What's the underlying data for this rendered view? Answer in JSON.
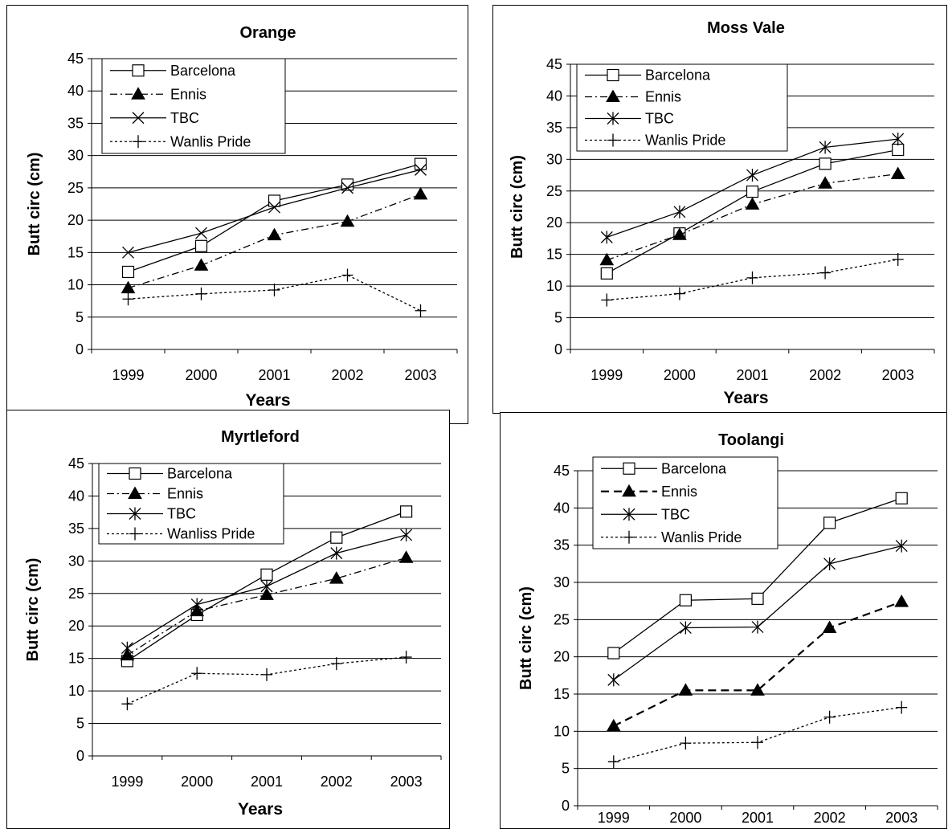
{
  "chart_data": [
    {
      "type": "line",
      "title": "Orange",
      "xlabel": "Years",
      "ylabel": "Butt circ (cm)",
      "categories": [
        "1999",
        "2000",
        "2001",
        "2002",
        "2003"
      ],
      "ylim": [
        0,
        45
      ],
      "yticks": [
        "0",
        "5",
        "10",
        "15",
        "20",
        "25",
        "30",
        "35",
        "40",
        "45"
      ],
      "grid": true,
      "legend": "top-left",
      "series": [
        {
          "name": "Barcelona",
          "marker": "open-square",
          "line": "solid",
          "values": [
            12,
            16,
            23,
            25.5,
            28.7
          ]
        },
        {
          "name": "Ennis",
          "marker": "filled-triangle",
          "line": "dash-dot",
          "values": [
            9.5,
            13,
            17.7,
            19.8,
            24
          ]
        },
        {
          "name": "TBC",
          "marker": "x",
          "line": "solid",
          "values": [
            15,
            18,
            22,
            25,
            27.8
          ]
        },
        {
          "name": "Wanlis Pride",
          "marker": "plus",
          "line": "dotted",
          "values": [
            7.8,
            8.6,
            9.2,
            11.5,
            6
          ]
        }
      ]
    },
    {
      "type": "line",
      "title": "Moss Vale",
      "xlabel": "Years",
      "ylabel": "Butt circ (cm)",
      "categories": [
        "1999",
        "2000",
        "2001",
        "2002",
        "2003"
      ],
      "ylim": [
        0,
        45
      ],
      "yticks": [
        "0",
        "5",
        "10",
        "15",
        "20",
        "25",
        "30",
        "35",
        "40",
        "45"
      ],
      "grid": true,
      "legend": "top-left",
      "series": [
        {
          "name": "Barcelona",
          "marker": "open-square",
          "line": "solid",
          "values": [
            12,
            18.3,
            24.9,
            29.3,
            31.5
          ]
        },
        {
          "name": "Ennis",
          "marker": "filled-triangle",
          "line": "dash-dot",
          "values": [
            14.1,
            18.1,
            22.9,
            26.2,
            27.7
          ]
        },
        {
          "name": "TBC",
          "marker": "asterisk",
          "line": "solid",
          "values": [
            17.7,
            21.7,
            27.5,
            31.9,
            33.2
          ]
        },
        {
          "name": "Wanlis Pride",
          "marker": "plus",
          "line": "dotted",
          "values": [
            7.8,
            8.8,
            11.3,
            12.1,
            14.2
          ]
        }
      ]
    },
    {
      "type": "line",
      "title": "Myrtleford",
      "xlabel": "Years",
      "ylabel": "Butt circ (cm)",
      "categories": [
        "1999",
        "2000",
        "2001",
        "2002",
        "2003"
      ],
      "ylim": [
        0,
        45
      ],
      "yticks": [
        "0",
        "5",
        "10",
        "15",
        "20",
        "25",
        "30",
        "35",
        "40",
        "45"
      ],
      "grid": true,
      "legend": "top-left",
      "series": [
        {
          "name": "Barcelona",
          "marker": "open-square",
          "line": "solid",
          "values": [
            14.6,
            21.7,
            27.9,
            33.6,
            37.6
          ]
        },
        {
          "name": "Ennis",
          "marker": "filled-triangle",
          "line": "dash-dot",
          "values": [
            15.5,
            22.3,
            24.8,
            27.3,
            30.5
          ]
        },
        {
          "name": "TBC",
          "marker": "asterisk",
          "line": "solid",
          "values": [
            16.6,
            23.3,
            26.1,
            31.2,
            34
          ]
        },
        {
          "name": "Wanliss Pride",
          "marker": "plus",
          "line": "dotted",
          "values": [
            8,
            12.7,
            12.5,
            14.2,
            15.2
          ]
        }
      ]
    },
    {
      "type": "line",
      "title": "Toolangi",
      "xlabel": "Years",
      "ylabel": "Butt circ (cm)",
      "categories": [
        "1999",
        "2000",
        "2001",
        "2002",
        "2003"
      ],
      "ylim": [
        0,
        45
      ],
      "yticks": [
        "0",
        "5",
        "10",
        "15",
        "20",
        "25",
        "30",
        "35",
        "40",
        "45"
      ],
      "grid": true,
      "legend": "top-left",
      "series": [
        {
          "name": "Barcelona",
          "marker": "open-square",
          "line": "solid",
          "values": [
            20.5,
            27.6,
            27.8,
            38,
            41.3
          ]
        },
        {
          "name": "Ennis",
          "marker": "filled-triangle",
          "line": "long-dash",
          "values": [
            10.7,
            15.5,
            15.5,
            23.9,
            27.4
          ]
        },
        {
          "name": "TBC",
          "marker": "asterisk",
          "line": "solid",
          "values": [
            16.9,
            23.9,
            24,
            32.5,
            34.9
          ]
        },
        {
          "name": "Wanlis Pride",
          "marker": "plus",
          "line": "dotted",
          "values": [
            5.9,
            8.4,
            8.5,
            11.9,
            13.2
          ]
        }
      ]
    }
  ]
}
